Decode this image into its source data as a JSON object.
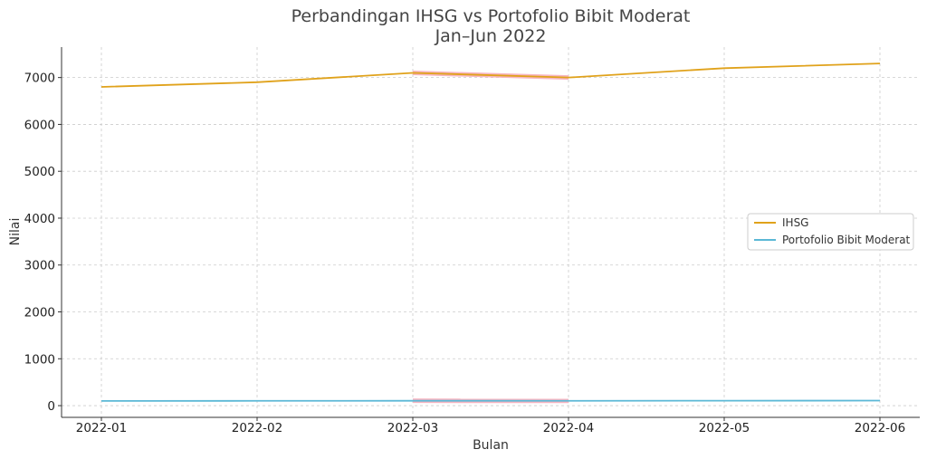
{
  "chart_data": {
    "type": "line",
    "title": "Perbandingan IHSG vs Portofolio Bibit Moderat",
    "subtitle": "Jan–Jun 2022",
    "xlabel": "Bulan",
    "ylabel": "Nilai",
    "categories": [
      "2022-01",
      "2022-02",
      "2022-03",
      "2022-04",
      "2022-05",
      "2022-06"
    ],
    "ylim": [
      -250,
      7650
    ],
    "yticks": [
      0,
      1000,
      2000,
      3000,
      4000,
      5000,
      6000,
      7000
    ],
    "grid": true,
    "legend_position": "center-right",
    "series": [
      {
        "name": "IHSG",
        "color": "#e0a21b",
        "values": [
          6800,
          6900,
          7100,
          7000,
          7200,
          7300
        ]
      },
      {
        "name": "Portofolio Bibit Moderat",
        "color": "#5bb8d6",
        "values": [
          100,
          102,
          104,
          103,
          105,
          107
        ]
      }
    ],
    "highlight": {
      "color": "#f7b6c2",
      "from_category": "2022-03",
      "to_category": "2022-04"
    }
  }
}
